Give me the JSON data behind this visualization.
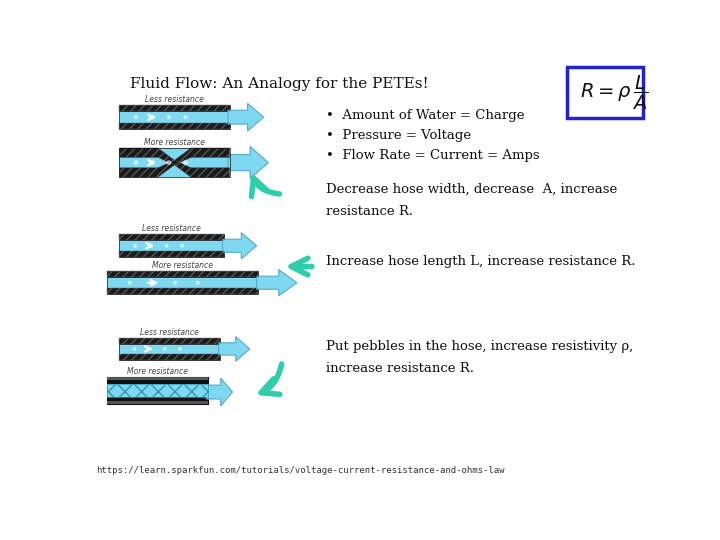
{
  "title": "Fluid Flow: An Analogy for the PETEs!",
  "title_fontsize": 11,
  "bg_color": "#ffffff",
  "bullet_points": [
    "Amount of Water = Charge",
    "Pressure = Voltage",
    "Flow Rate = Current = Amps"
  ],
  "desc1": "Decrease hose width, decrease  A, increase\nresistance R.",
  "desc2": "Increase hose length L, increase resistance R.",
  "desc3": "Put pebbles in the hose, increase resistivity ρ,\nincrease resistance R.",
  "footer": "https://learn.sparkfun.com/tutorials/voltage-current-resistance-and-ohms-law",
  "hose_color": "#7dd8f0",
  "hose_border": "#111111",
  "hatch_color_dark": "#111111",
  "arrow_color": "#2ecfa8",
  "box_border": "#2222cc",
  "less_label": "Less resistance",
  "more_label": "More resistance",
  "label_fontsize": 5.5,
  "desc_fontsize": 9.5,
  "bullet_fontsize": 9.5
}
